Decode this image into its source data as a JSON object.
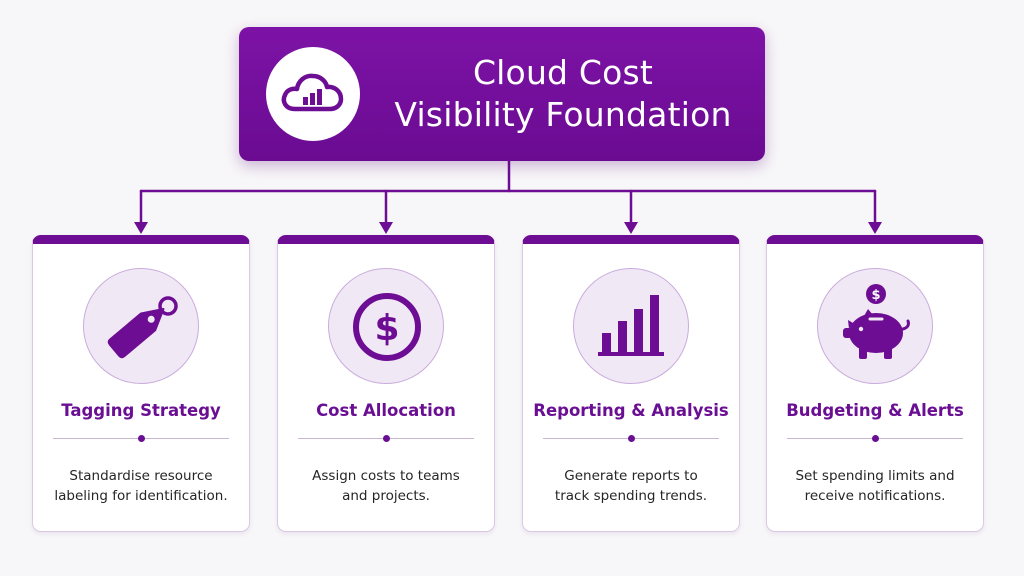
{
  "header": {
    "title_line1": "Cloud Cost",
    "title_line2": "Visibility Foundation",
    "icon": "cloud-chart-icon"
  },
  "colors": {
    "primary": "#6c0d93",
    "icon_bg": "#f1e8f6",
    "text": "#262626",
    "background": "#f7f6f8"
  },
  "cards": [
    {
      "title": "Tagging Strategy",
      "description": "Standardise resource\nlabeling for identification.",
      "icon": "tag-icon"
    },
    {
      "title": "Cost Allocation",
      "description": "Assign costs to teams\nand projects.",
      "icon": "dollar-icon"
    },
    {
      "title": "Reporting & Analysis",
      "description": "Generate reports to\ntrack spending trends.",
      "icon": "bar-chart-icon"
    },
    {
      "title": "Budgeting & Alerts",
      "description": "Set spending limits and\nreceive notifications.",
      "icon": "piggy-bank-icon"
    }
  ]
}
